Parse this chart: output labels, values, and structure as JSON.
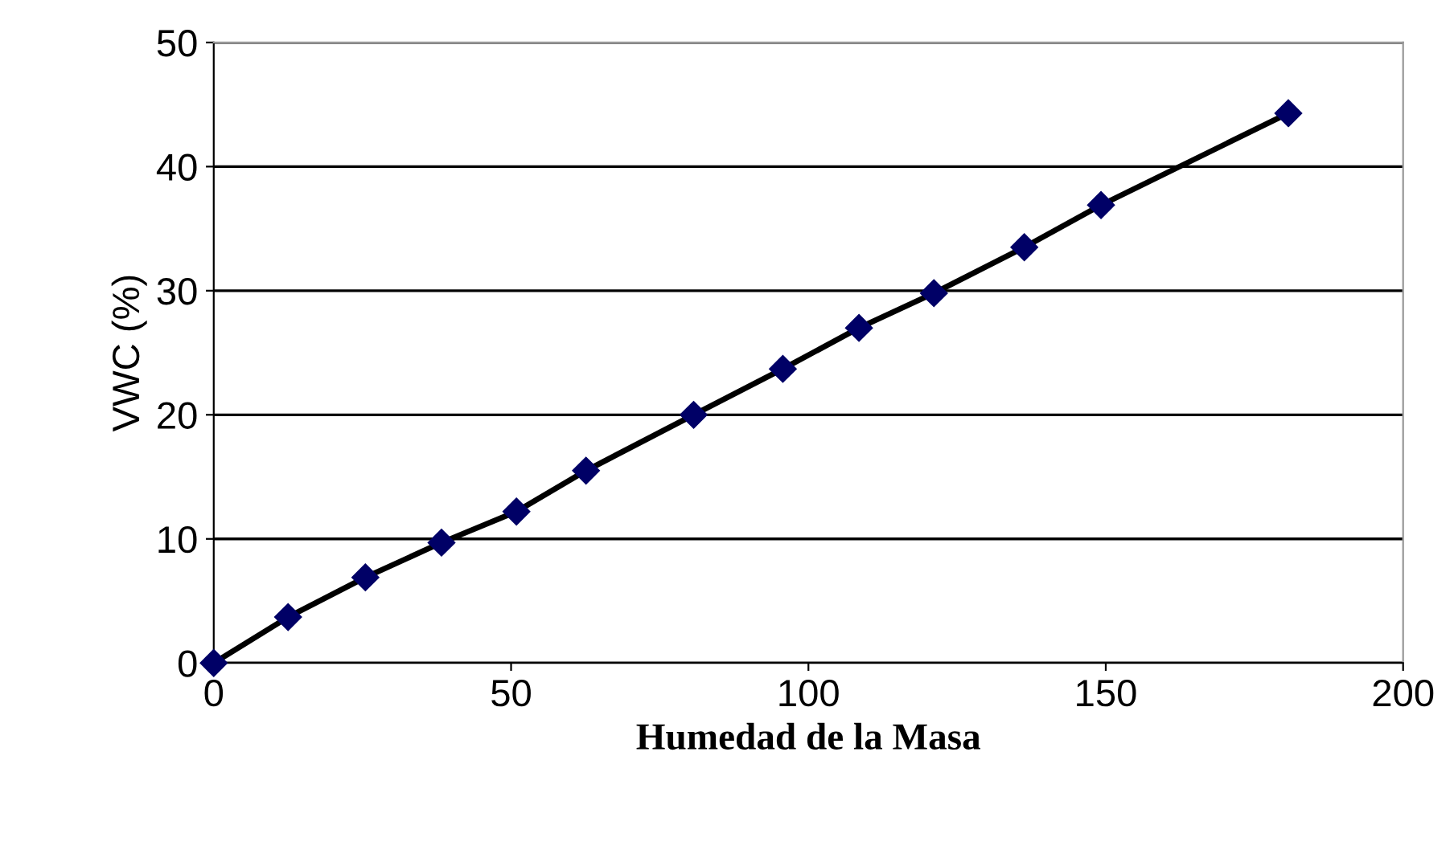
{
  "chart_data": {
    "type": "line",
    "xlabel": "Humedad de la Masa",
    "ylabel": "VWC (%)",
    "xlim": [
      0,
      200
    ],
    "ylim": [
      0,
      50
    ],
    "xticks": [
      0,
      50,
      100,
      150,
      200
    ],
    "yticks": [
      0,
      10,
      20,
      30,
      40,
      50
    ],
    "grid": "y",
    "marker": "diamond",
    "line_style": "solid",
    "series": [
      {
        "color": "#000066",
        "x": [
          0,
          12.5,
          25.5,
          38.3,
          50.9,
          62.6,
          80.7,
          95.7,
          108.5,
          121.1,
          136.3,
          149.2,
          180.7
        ],
        "values": [
          0,
          3.7,
          6.9,
          9.7,
          12.2,
          15.5,
          20,
          23.7,
          27,
          29.8,
          33.5,
          36.9,
          44.3
        ]
      }
    ]
  }
}
